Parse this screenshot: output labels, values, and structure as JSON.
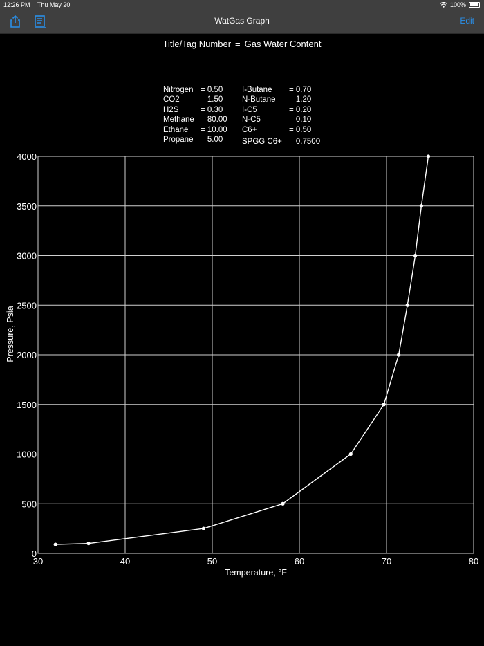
{
  "status": {
    "time": "12:26 PM",
    "date": "Thu May 20",
    "battery": "100%"
  },
  "nav": {
    "title": "WatGas Graph",
    "edit_label": "Edit"
  },
  "header": {
    "tag_label": "Title/Tag Number",
    "equals": "=",
    "tag_value": "Gas Water Content"
  },
  "composition": {
    "left": [
      {
        "name": "Nitrogen",
        "value": "= 0.50"
      },
      {
        "name": "CO2",
        "value": "= 1.50"
      },
      {
        "name": "H2S",
        "value": "= 0.30"
      },
      {
        "name": "Methane",
        "value": "= 80.00"
      },
      {
        "name": "Ethane",
        "value": "= 10.00"
      },
      {
        "name": "Propane",
        "value": "= 5.00"
      }
    ],
    "right": [
      {
        "name": "I-Butane",
        "value": "= 0.70"
      },
      {
        "name": "N-Butane",
        "value": "= 1.20"
      },
      {
        "name": "I-C5",
        "value": "= 0.20"
      },
      {
        "name": "N-C5",
        "value": "= 0.10"
      },
      {
        "name": "C6+",
        "value": "= 0.50"
      },
      {
        "name": "SPGG C6+",
        "value": "= 0.7500"
      }
    ]
  },
  "chart_data": {
    "type": "line",
    "xlabel": "Temperature, °F",
    "ylabel": "Pressure, Psia",
    "xlim": [
      30,
      80
    ],
    "ylim": [
      0,
      4000
    ],
    "xticks": [
      30,
      40,
      50,
      60,
      70,
      80
    ],
    "yticks": [
      0,
      500,
      1000,
      1500,
      2000,
      2500,
      3000,
      3500,
      4000
    ],
    "grid": true,
    "series": [
      {
        "x": [
          32,
          35.8,
          49,
          58.1,
          65.9,
          69.7,
          71.4,
          72.4,
          73.3,
          74,
          74.8
        ],
        "y": [
          90,
          100,
          250,
          500,
          1000,
          1500,
          2000,
          2500,
          3000,
          3500,
          4000
        ]
      }
    ]
  },
  "colors": {
    "background": "#000000",
    "bar": "#3f3f3f",
    "accent": "#2a8fe8",
    "line": "#ffffff"
  },
  "icons": [
    "wifi-icon",
    "battery-icon",
    "share-icon",
    "report-icon"
  ]
}
